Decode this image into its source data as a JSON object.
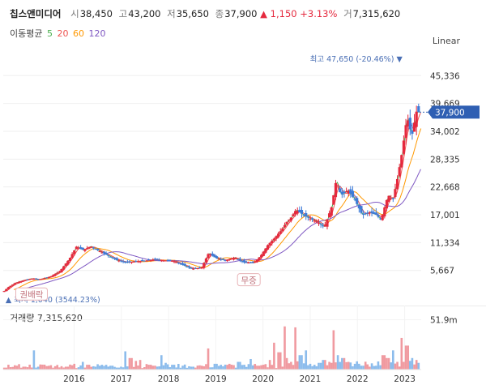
{
  "header": {
    "name": "칩스앤미디어",
    "open_label": "시",
    "open": "38,450",
    "high_label": "고",
    "high": "43,200",
    "low_label": "저",
    "low": "35,650",
    "close_label": "종",
    "close": "37,900",
    "change_arrow": "▲",
    "change": "1,150",
    "change_pct": "+3.13%",
    "volume_label": "거",
    "volume": "7,315,620"
  },
  "moving_average": {
    "label": "이동평균",
    "periods": [
      {
        "value": "5",
        "color": "#4caf50"
      },
      {
        "value": "20",
        "color": "#ef5350"
      },
      {
        "value": "60",
        "color": "#ff9800"
      },
      {
        "value": "120",
        "color": "#7e57c2"
      }
    ]
  },
  "scale_toggle": "Linear",
  "chart_data": {
    "type": "candlestick",
    "y_ticks": [
      "45,336",
      "39,669",
      "34,002",
      "28,335",
      "22,668",
      "17,001",
      "11,334",
      "5,667"
    ],
    "y_tick_values": [
      45336,
      39669,
      34002,
      28335,
      22668,
      17001,
      11334,
      5667
    ],
    "ylim": [
      1000,
      50000
    ],
    "x_ticks": [
      "2016",
      "2017",
      "2018",
      "2019",
      "2020",
      "2021",
      "2022",
      "2023"
    ],
    "x_tick_values": [
      2016,
      2017,
      2018,
      2019,
      2020,
      2021,
      2022,
      2023
    ],
    "xlim": [
      2015.0,
      2023.85
    ],
    "current_price": "37,900",
    "current_value": 37900,
    "max_annotation": {
      "text": "최고 47,650 (-20.46%)",
      "value": 47650,
      "x": 2023.52
    },
    "min_annotation": {
      "text": "최저 1,040 (3544.23%)",
      "value": 1040,
      "x": 2015.05
    },
    "events": [
      {
        "label": "권배락",
        "x": 2015.6,
        "value": 3600
      },
      {
        "label": "무증",
        "x": 2020.2,
        "value": 6500
      }
    ],
    "price_path": [
      [
        2015.0,
        1300
      ],
      [
        2015.1,
        2200
      ],
      [
        2015.25,
        3100
      ],
      [
        2015.45,
        3700
      ],
      [
        2015.6,
        4000
      ],
      [
        2015.75,
        3800
      ],
      [
        2016.0,
        4400
      ],
      [
        2016.2,
        5500
      ],
      [
        2016.4,
        8000
      ],
      [
        2016.55,
        10500
      ],
      [
        2016.7,
        9800
      ],
      [
        2016.85,
        10600
      ],
      [
        2017.0,
        9800
      ],
      [
        2017.2,
        8800
      ],
      [
        2017.4,
        7800
      ],
      [
        2017.6,
        7300
      ],
      [
        2017.8,
        7500
      ],
      [
        2018.0,
        7600
      ],
      [
        2018.2,
        7900
      ],
      [
        2018.4,
        7700
      ],
      [
        2018.6,
        7600
      ],
      [
        2018.8,
        6800
      ],
      [
        2019.0,
        6000
      ],
      [
        2019.2,
        6200
      ],
      [
        2019.35,
        9200
      ],
      [
        2019.5,
        8200
      ],
      [
        2019.7,
        7700
      ],
      [
        2019.9,
        8300
      ],
      [
        2020.1,
        7300
      ],
      [
        2020.3,
        7200
      ],
      [
        2020.45,
        8600
      ],
      [
        2020.6,
        10800
      ],
      [
        2020.75,
        12300
      ],
      [
        2020.9,
        14000
      ],
      [
        2021.0,
        15500
      ],
      [
        2021.1,
        16500
      ],
      [
        2021.2,
        18000
      ],
      [
        2021.35,
        17000
      ],
      [
        2021.5,
        16200
      ],
      [
        2021.65,
        15600
      ],
      [
        2021.8,
        14500
      ],
      [
        2021.95,
        18500
      ],
      [
        2022.05,
        24000
      ],
      [
        2022.15,
        21000
      ],
      [
        2022.3,
        22000
      ],
      [
        2022.45,
        20000
      ],
      [
        2022.6,
        17000
      ],
      [
        2022.75,
        17500
      ],
      [
        2022.9,
        17000
      ],
      [
        2023.0,
        16000
      ],
      [
        2023.15,
        21000
      ],
      [
        2023.25,
        20000
      ],
      [
        2023.35,
        24500
      ],
      [
        2023.45,
        30000
      ],
      [
        2023.55,
        37000
      ],
      [
        2023.65,
        33000
      ],
      [
        2023.75,
        38000
      ],
      [
        2023.82,
        37900
      ]
    ],
    "ma_series": [
      {
        "period": 5,
        "color": "#4caf50",
        "offset": 0.0,
        "lag": 0.03
      },
      {
        "period": 20,
        "color": "#ef5350",
        "offset": 0.0,
        "lag": 0.12
      },
      {
        "period": 60,
        "color": "#ff9800",
        "offset": 0.0,
        "lag": 0.45
      },
      {
        "period": 120,
        "color": "#7e57c2",
        "offset": 0.0,
        "lag": 1.0
      }
    ],
    "volume": {
      "label": "거래량",
      "value": "7,315,620",
      "tick": "51.9m",
      "tick_value": 51900000,
      "ylim": [
        0,
        60000000
      ],
      "up_color": "#f09aa0",
      "down_color": "#8cbcec",
      "highlights": [
        [
          2015.05,
          2000000
        ],
        [
          2015.15,
          2500000
        ],
        [
          2015.3,
          4000000
        ],
        [
          2015.45,
          3000000
        ],
        [
          2015.65,
          20000000
        ],
        [
          2015.75,
          3000000
        ],
        [
          2016.1,
          3500000
        ],
        [
          2016.25,
          3500000
        ],
        [
          2016.35,
          3000000
        ],
        [
          2016.5,
          6000000
        ],
        [
          2016.7,
          8000000
        ],
        [
          2016.8,
          5000000
        ],
        [
          2016.95,
          3000000
        ],
        [
          2017.1,
          5000000
        ],
        [
          2017.3,
          4000000
        ],
        [
          2017.5,
          3000000
        ],
        [
          2017.6,
          19000000
        ],
        [
          2017.7,
          12000000
        ],
        [
          2017.8,
          9000000
        ],
        [
          2017.9,
          10000000
        ],
        [
          2018.1,
          5000000
        ],
        [
          2018.2,
          4000000
        ],
        [
          2018.35,
          15000000
        ],
        [
          2018.45,
          7000000
        ],
        [
          2018.6,
          5000000
        ],
        [
          2018.8,
          4000000
        ],
        [
          2019.0,
          3000000
        ],
        [
          2019.2,
          4000000
        ],
        [
          2019.35,
          22000000
        ],
        [
          2019.5,
          6000000
        ],
        [
          2019.6,
          5000000
        ],
        [
          2019.8,
          6000000
        ],
        [
          2020.0,
          8000000
        ],
        [
          2020.1,
          5000000
        ],
        [
          2020.25,
          11000000
        ],
        [
          2020.4,
          4000000
        ],
        [
          2020.5,
          5000000
        ],
        [
          2020.65,
          10000000
        ],
        [
          2020.75,
          28000000
        ],
        [
          2020.85,
          18000000
        ],
        [
          2020.95,
          45000000
        ],
        [
          2021.0,
          12000000
        ],
        [
          2021.1,
          8000000
        ],
        [
          2021.2,
          44000000
        ],
        [
          2021.3,
          15000000
        ],
        [
          2021.4,
          20000000
        ],
        [
          2021.5,
          6000000
        ],
        [
          2021.6,
          5000000
        ],
        [
          2021.7,
          7000000
        ],
        [
          2021.8,
          10000000
        ],
        [
          2021.9,
          8000000
        ],
        [
          2022.0,
          41000000
        ],
        [
          2022.1,
          15000000
        ],
        [
          2022.2,
          12000000
        ],
        [
          2022.3,
          8000000
        ],
        [
          2022.45,
          6000000
        ],
        [
          2022.6,
          4000000
        ],
        [
          2022.75,
          3000000
        ],
        [
          2022.9,
          4000000
        ],
        [
          2023.05,
          15000000
        ],
        [
          2023.15,
          12000000
        ],
        [
          2023.25,
          20000000
        ],
        [
          2023.35,
          8000000
        ],
        [
          2023.45,
          33000000
        ],
        [
          2023.55,
          25000000
        ],
        [
          2023.65,
          12000000
        ],
        [
          2023.75,
          10000000
        ],
        [
          2023.82,
          7000000
        ]
      ]
    }
  }
}
